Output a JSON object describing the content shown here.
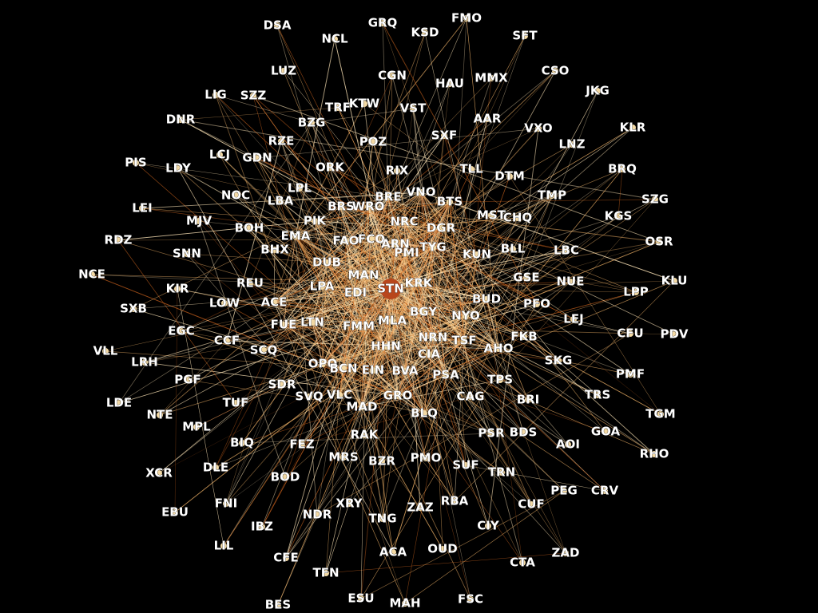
{
  "graph": {
    "title": "Airport connection network",
    "background": "#000000",
    "colors": {
      "label": "#ffffff",
      "node": "#f3d9a4",
      "edge_light": "#ffe6b8",
      "edge_warm": "#f5b66a",
      "edge_dark": "#c9621d",
      "hub": "#b8461c"
    },
    "hub": "STN",
    "nodes": [
      "DSA",
      "GRQ",
      "FMO",
      "KSD",
      "SFT",
      "NCL",
      "LUZ",
      "CGN",
      "HAU",
      "MMX",
      "CSO",
      "LIG",
      "SZZ",
      "TRF",
      "KTW",
      "VST",
      "AAR",
      "JKG",
      "DNR",
      "BZG",
      "SXF",
      "VXO",
      "KLR",
      "RZE",
      "POZ",
      "LNZ",
      "PIS",
      "LCJ",
      "GDN",
      "LDY",
      "ORK",
      "RIX",
      "TLL",
      "DTM",
      "BRQ",
      "NOC",
      "LBA",
      "LPL",
      "BRE",
      "VNO",
      "TMP",
      "SZG",
      "LEI",
      "PIK",
      "BRS",
      "WRO",
      "BTS",
      "MST",
      "KGS",
      "MJV",
      "BOH",
      "EMA",
      "NRC",
      "DGR",
      "CHQ",
      "RDZ",
      "SNN",
      "BHX",
      "FAO",
      "FCO",
      "ARN",
      "PMI",
      "TYG",
      "BLL",
      "OSR",
      "LBC",
      "DUB",
      "KUN",
      "NCE",
      "MAN",
      "GSE",
      "KIR",
      "REU",
      "LPA",
      "EDI",
      "STN",
      "KRK",
      "BUD",
      "NUE",
      "KLU",
      "LPP",
      "SXB",
      "LOW",
      "ACE",
      "BGY",
      "NYO",
      "PFO",
      "EGC",
      "FUE",
      "LTN",
      "FMM",
      "MLA",
      "NRN",
      "LEJ",
      "CFU",
      "PDV",
      "VLL",
      "CCF",
      "SCQ",
      "HHN",
      "TSF",
      "AHO",
      "FKB",
      "LRH",
      "OPO",
      "BCN",
      "EIN",
      "BVA",
      "CIA",
      "PSA",
      "SKG",
      "PMF",
      "PGF",
      "SDR",
      "TPS",
      "LDE",
      "TUF",
      "SVQ",
      "VLC",
      "GRO",
      "CAG",
      "BRI",
      "TRS",
      "MAD",
      "BLQ",
      "TGM",
      "NTE",
      "MPL",
      "PSR",
      "BDS",
      "GOA",
      "RAK",
      "BIQ",
      "FEZ",
      "AOI",
      "RHO",
      "XCR",
      "DLE",
      "MRS",
      "BZR",
      "PMO",
      "SUF",
      "TRN",
      "BOD",
      "PEG",
      "CRV",
      "EBU",
      "FNI",
      "XRY",
      "ZAZ",
      "RBA",
      "CUF",
      "NDR",
      "IBZ",
      "TNG",
      "CIY",
      "LIL",
      "ACA",
      "OUD",
      "ZAD",
      "CFE",
      "CTA",
      "TFN",
      "BES",
      "ESU",
      "MAH",
      "FSC"
    ]
  }
}
